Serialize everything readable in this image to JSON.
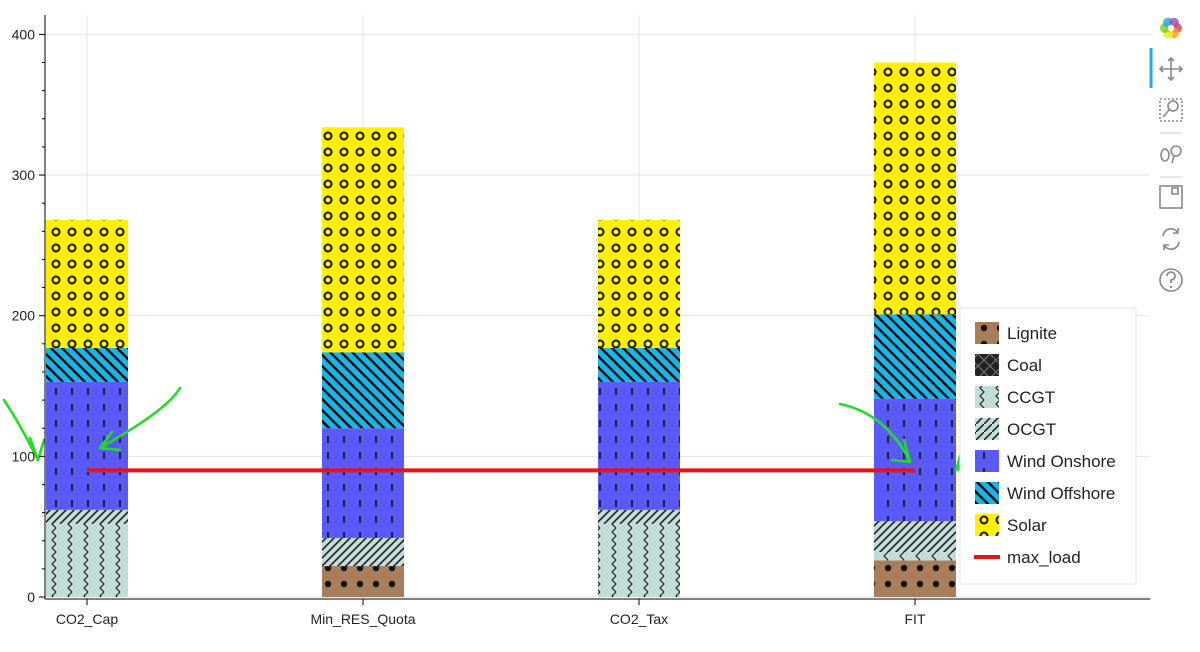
{
  "chart_data": {
    "type": "bar",
    "stacked": true,
    "categories": [
      "CO2_Cap",
      "Min_RES_Quota",
      "CO2_Tax",
      "FIT"
    ],
    "series": [
      {
        "name": "Lignite",
        "color": "#a87d5a",
        "hatch": "dots",
        "values": [
          0,
          22,
          0,
          26
        ]
      },
      {
        "name": "Coal",
        "color": "#222222",
        "hatch": "cross",
        "values": [
          0,
          0,
          0,
          0
        ]
      },
      {
        "name": "CCGT",
        "color": "#c2dcd9",
        "hatch": "waves",
        "values": [
          52,
          0,
          52,
          6
        ]
      },
      {
        "name": "OCGT",
        "color": "#c2dcd9",
        "hatch": "diagonal",
        "values": [
          10,
          20,
          10,
          22
        ]
      },
      {
        "name": "Wind Onshore",
        "color": "#5a5af8",
        "hatch": "dashes",
        "values": [
          91,
          78,
          91,
          87
        ]
      },
      {
        "name": "Wind Offshore",
        "color": "#1ab4e6",
        "hatch": "diagonal-dense",
        "values": [
          24,
          54,
          24,
          60
        ]
      },
      {
        "name": "Solar",
        "color": "#fff000",
        "hatch": "rings",
        "values": [
          91,
          160,
          91,
          179
        ]
      }
    ],
    "line_series": [
      {
        "name": "max_load",
        "color": "#ee1111",
        "x_range": [
          "CO2_Cap",
          "FIT"
        ],
        "value": 90
      }
    ],
    "annotations": [
      {
        "type": "arrow",
        "color": "#22dd22",
        "target": "CO2_Cap",
        "y": 100,
        "note": "hand-drawn arrow from left"
      },
      {
        "type": "arrow",
        "color": "#22dd22",
        "target": "CO2_Cap",
        "y": 100,
        "note": "hand-drawn arrow from upper right"
      },
      {
        "type": "arrow",
        "color": "#22dd22",
        "target": "FIT",
        "y": 90,
        "note": "hand-drawn arrow from upper left"
      },
      {
        "type": "arrow",
        "color": "#22dd22",
        "target": "FIT",
        "y": 95,
        "note": "hand-drawn arrow from right"
      }
    ],
    "yticks": [
      0,
      100,
      200,
      300,
      400
    ],
    "ylim": [
      0,
      414
    ],
    "title": "",
    "xlabel": "",
    "ylabel": "",
    "grid": true,
    "legend_position": "bottom-right"
  },
  "toolbar": {
    "tools": [
      {
        "name": "bokeh-logo-icon"
      },
      {
        "name": "pan-icon"
      },
      {
        "name": "box-zoom-icon"
      },
      {
        "name": "wheel-zoom-icon"
      },
      {
        "name": "save-icon"
      },
      {
        "name": "reset-icon"
      },
      {
        "name": "help-icon"
      }
    ]
  }
}
